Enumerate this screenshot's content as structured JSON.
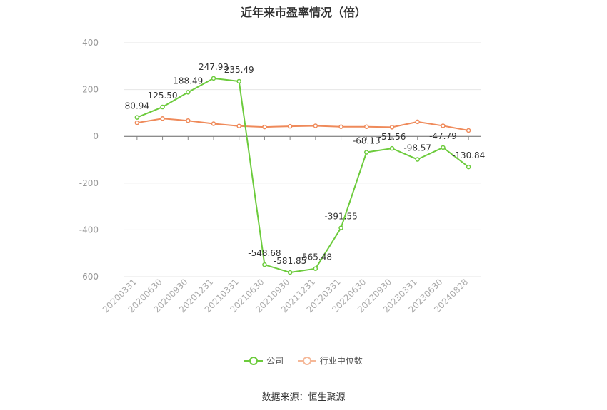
{
  "chart_data": {
    "type": "line",
    "title": "近年来市盈率情况（倍）",
    "categories": [
      "20200331",
      "20200630",
      "20200930",
      "20201231",
      "20210331",
      "20210630",
      "20210930",
      "20211231",
      "20220331",
      "20220630",
      "20220930",
      "20230331",
      "20230630",
      "20240828"
    ],
    "series": [
      {
        "name": "公司",
        "color": "#6ccb3c",
        "values": [
          80.94,
          125.5,
          188.49,
          247.93,
          235.49,
          -548.68,
          -581.85,
          -565.48,
          -391.55,
          -68.13,
          -51.56,
          -98.57,
          -47.79,
          -130.84
        ],
        "labels": [
          "80.94",
          "125.50",
          "188.49",
          "247.93",
          "235.49",
          "-548.68",
          "-581.85",
          "-565.48",
          "-391.55",
          "-68.13",
          "-51.56",
          "-98.57",
          "-47.79",
          "-130.84"
        ]
      },
      {
        "name": "行业中位数",
        "color": "#ef8a5a",
        "values": [
          58,
          76,
          67,
          54,
          44,
          40,
          43,
          45,
          41,
          41,
          39,
          62,
          45,
          25
        ]
      }
    ],
    "ylim": [
      -600,
      400
    ],
    "yticks": [
      400,
      200,
      0,
      -200,
      -400,
      -600
    ],
    "ytick_labels": [
      "400",
      "200",
      "0",
      "-200",
      "-400",
      "-600"
    ],
    "grid": true,
    "legend_position": "bottom"
  },
  "source": "数据来源：恒生聚源"
}
